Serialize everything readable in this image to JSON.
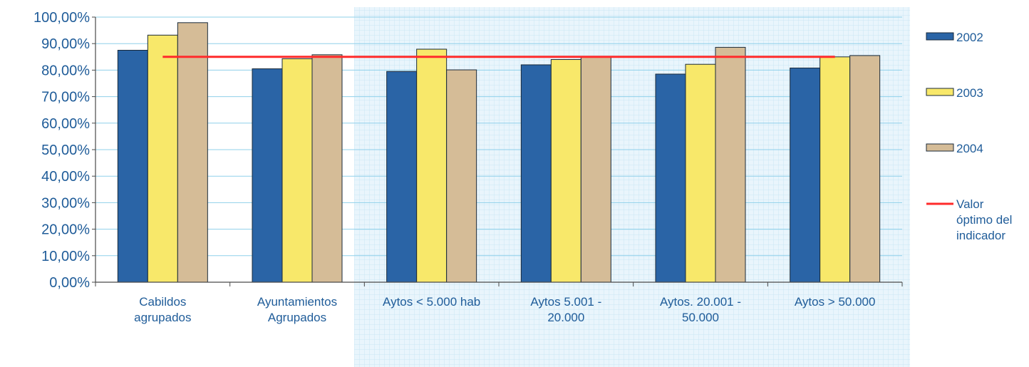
{
  "chart_data": {
    "type": "bar",
    "categories": [
      [
        "Cabildos",
        "agrupados"
      ],
      [
        "Ayuntamientos",
        "Agrupados"
      ],
      [
        "Aytos < 5.000 hab"
      ],
      [
        "Aytos 5.001 -",
        "20.000"
      ],
      [
        "Aytos. 20.001 -",
        "50.000"
      ],
      [
        "Aytos > 50.000"
      ]
    ],
    "series": [
      {
        "name": "2002",
        "color": "#2a64a6",
        "values": [
          87.5,
          80.5,
          79.5,
          82.0,
          78.5,
          80.8
        ]
      },
      {
        "name": "2003",
        "color": "#f8e86a",
        "values": [
          93.2,
          84.3,
          87.9,
          84.0,
          82.2,
          85.0
        ]
      },
      {
        "name": "2004",
        "color": "#d5bc97",
        "values": [
          97.9,
          85.8,
          80.1,
          85.0,
          88.6,
          85.5
        ]
      }
    ],
    "reference_line": {
      "name_lines": [
        "Valor",
        "óptimo del",
        "indicador"
      ],
      "value": 85.0,
      "color": "#ff2b2b"
    },
    "y_ticks": [
      "0,00%",
      "10,00%",
      "20,00%",
      "30,00%",
      "40,00%",
      "50,00%",
      "60,00%",
      "70,00%",
      "80,00%",
      "90,00%",
      "100,00%"
    ],
    "ylim": [
      0,
      100
    ],
    "grid": true,
    "legend_position": "right",
    "title": "",
    "xlabel": "",
    "ylabel": ""
  }
}
